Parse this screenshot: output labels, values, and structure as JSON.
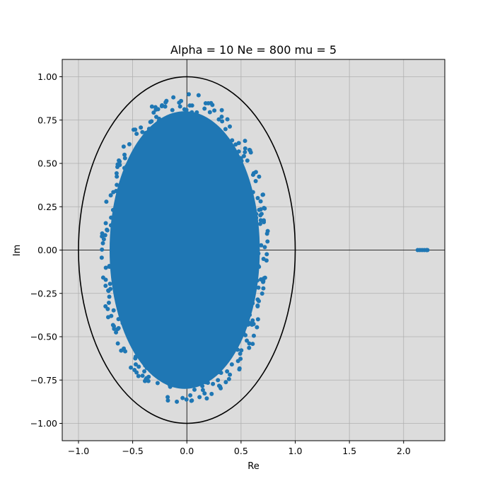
{
  "chart_data": {
    "type": "scatter",
    "title": "Alpha = 10 Ne = 800 mu = 5",
    "xlabel": "Re",
    "ylabel": "Im",
    "xlim": [
      -1.15,
      2.38
    ],
    "ylim": [
      -1.1,
      1.1
    ],
    "x_ticks": [
      -1.0,
      -0.5,
      0.0,
      0.5,
      1.0,
      1.5,
      2.0
    ],
    "x_tick_labels": [
      "−1.0",
      "−0.5",
      "0.0",
      "0.5",
      "1.0",
      "1.5",
      "2.0"
    ],
    "y_ticks": [
      -1.0,
      -0.75,
      -0.5,
      -0.25,
      0.0,
      0.25,
      0.5,
      0.75,
      1.0
    ],
    "y_tick_labels": [
      "−1.00",
      "−0.75",
      "−0.50",
      "−0.25",
      "0.00",
      "0.25",
      "0.50",
      "0.75",
      "1.00"
    ],
    "grid": true,
    "background_color": "#dcdcdc",
    "grid_color": "#b0b0b0",
    "series": [
      {
        "kind": "eigenvalue-cloud",
        "color": "#1f77b4",
        "distribution": "ellipse",
        "center": [
          -0.02,
          0.0
        ],
        "radius_x": 0.77,
        "radius_y": 0.89,
        "approx_points": 800
      },
      {
        "kind": "outlier-cluster",
        "color": "#1f77b4",
        "x": [
          2.13,
          2.15,
          2.17,
          2.19,
          2.21,
          2.22
        ],
        "y": [
          0.0,
          0.0,
          0.0,
          0.0,
          0.0,
          0.0
        ]
      }
    ],
    "reference_curves": [
      {
        "kind": "unit-circle",
        "center": [
          0.0,
          0.0
        ],
        "radius": 1.0,
        "color": "#000000"
      },
      {
        "kind": "axis-line",
        "orientation": "horizontal",
        "value": 0.0,
        "color": "#000000"
      },
      {
        "kind": "axis-line",
        "orientation": "vertical",
        "value": 0.0,
        "color": "#000000"
      }
    ]
  }
}
